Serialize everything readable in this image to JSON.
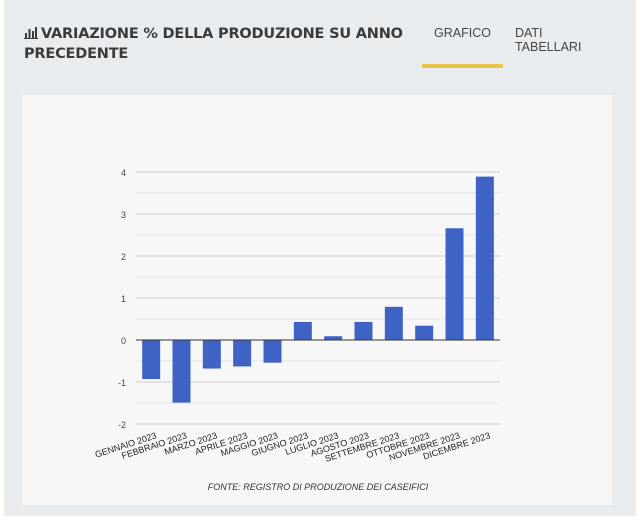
{
  "header": {
    "title": "VARIAZIONE % DELLA PRODUZIONE SU ANNO PRECEDENTE",
    "title_icon": "bar-chart-icon",
    "tabs": [
      {
        "label": "GRAFICO",
        "active": true
      },
      {
        "label": "DATI TABELLARI",
        "active": false
      }
    ]
  },
  "colors": {
    "bar": "#3f63c4",
    "tab_indicator": "#e8c547"
  },
  "chart_data": {
    "type": "bar",
    "categories": [
      "GENNAIO 2023",
      "FEBBRAIO 2023",
      "MARZO 2023",
      "APRILE 2023",
      "MAGGIO 2023",
      "GIUGNO 2023",
      "LUGLIO 2023",
      "AGOSTO 2023",
      "SETTEMBRE 2023",
      "OTTOBRE 2023",
      "NOVEMBRE 2023",
      "DICEMBRE 2023"
    ],
    "values": [
      -0.93,
      -1.49,
      -0.68,
      -0.63,
      -0.54,
      0.43,
      0.09,
      0.43,
      0.79,
      0.34,
      2.66,
      3.89
    ],
    "ylim": [
      -2,
      4
    ],
    "yticks": [
      4,
      3,
      2,
      1,
      0,
      -1,
      -2
    ],
    "minor_grid_step": 0.5,
    "grid": true,
    "legend": "none",
    "source": "FONTE: REGISTRO DI PRODUZIONE DEI CASEIFICI"
  }
}
